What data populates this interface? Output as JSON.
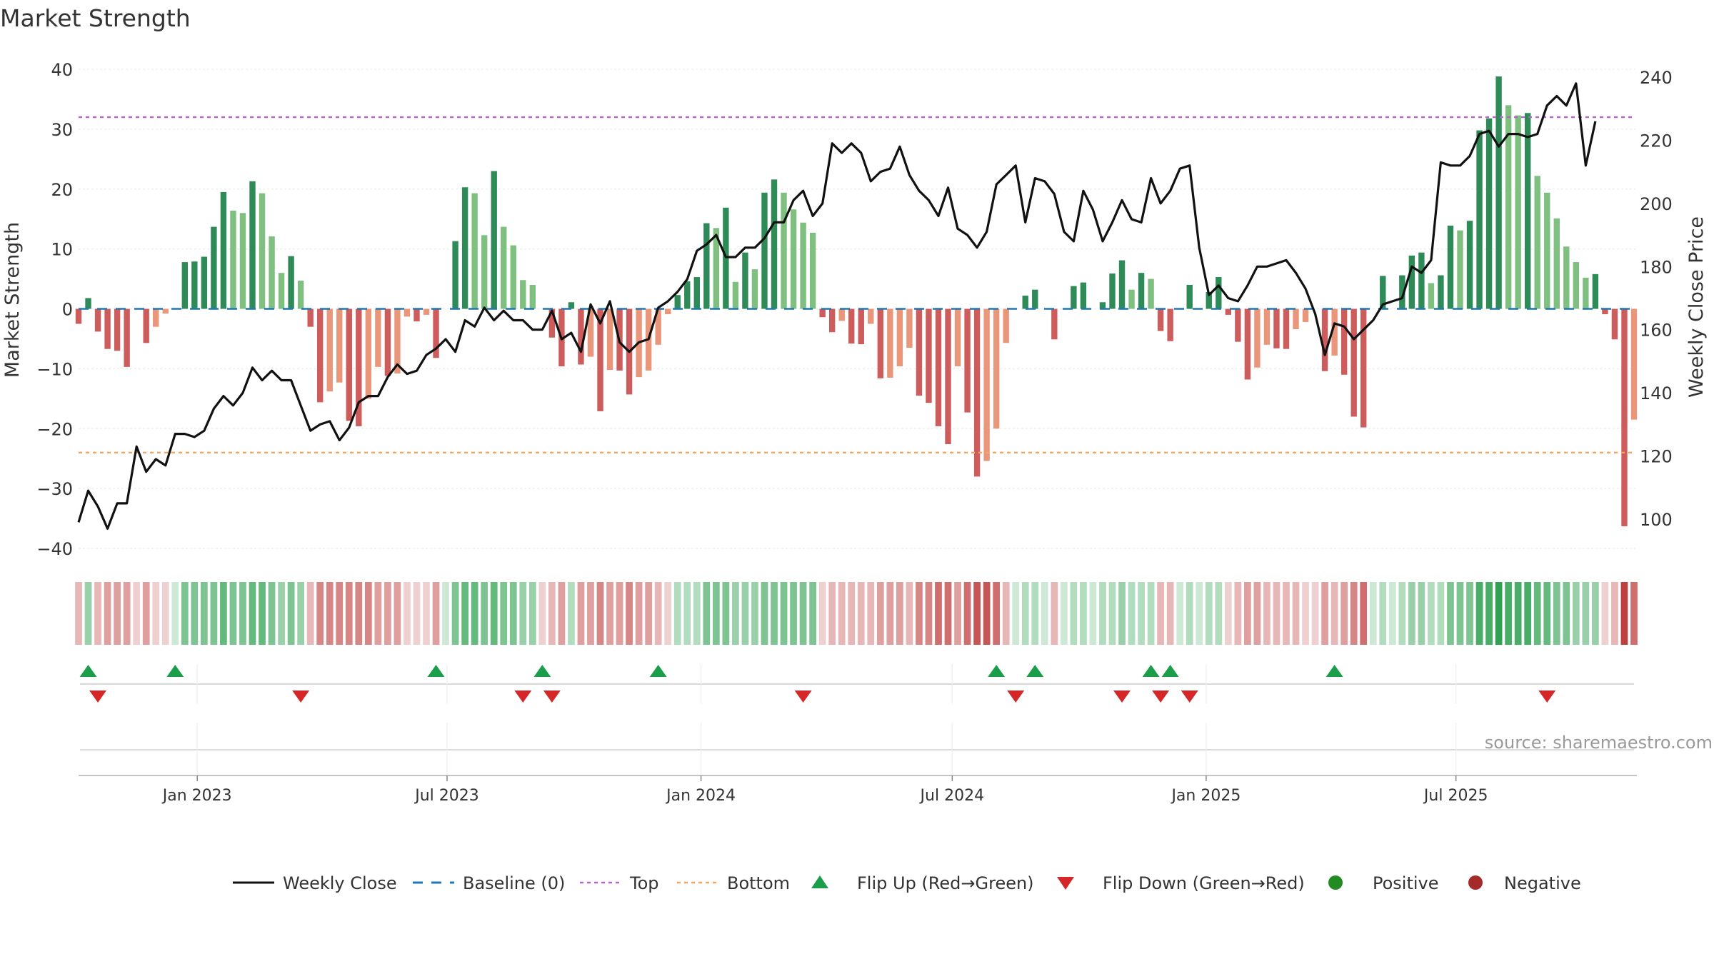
{
  "title": "Market Strength",
  "source": "source: sharemaestro.com",
  "colors": {
    "top_line": "#b565c9",
    "bottom_line": "#f0a860",
    "baseline": "#1f77b4",
    "price": "#111111",
    "strong_pos": "#2e8b57",
    "weak_pos": "#7fbf7f",
    "strong_neg": "#cd5c5c",
    "weak_neg": "#e9967a",
    "flip_up": "#1a9e4a",
    "flip_down": "#d62728",
    "positive_dot": "#228b22",
    "negative_dot": "#a52a2a"
  },
  "chart_data": {
    "type": "bar",
    "title": "Market Strength",
    "ylabel": "Market Strength",
    "y2label": "Weekly Close Price",
    "ylim": [
      -40,
      40
    ],
    "y2lim": [
      92,
      242
    ],
    "yticks": [
      "40",
      "30",
      "20",
      "10",
      "0",
      "−10",
      "−20",
      "−30",
      "−40"
    ],
    "y2ticks": [
      "240",
      "220",
      "200",
      "180",
      "160",
      "140",
      "120",
      "100"
    ],
    "x_start": "2022-10-07",
    "x_step_days": 7,
    "xticks": [
      {
        "date": "2023-01-01",
        "label": "Jan 2023"
      },
      {
        "date": "2023-07-01",
        "label": "Jul 2023"
      },
      {
        "date": "2024-01-01",
        "label": "Jan 2024"
      },
      {
        "date": "2024-07-01",
        "label": "Jul 2024"
      },
      {
        "date": "2025-01-01",
        "label": "Jan 2025"
      },
      {
        "date": "2025-07-01",
        "label": "Jul 2025"
      }
    ],
    "top_level": 32,
    "bottom_level": -24,
    "strength": [
      -2.5,
      1.8,
      -3.8,
      -6.7,
      -7,
      -9.7,
      0,
      -5.7,
      -3,
      -0.8,
      0,
      7.8,
      7.9,
      8.7,
      13.7,
      19.5,
      16.4,
      16,
      21.3,
      19.3,
      12.1,
      6,
      8.8,
      4.7,
      -3,
      -15.6,
      -13.8,
      -12.3,
      -18.7,
      -19.6,
      -15,
      -9.7,
      -11.2,
      -10.8,
      -1.3,
      -2.1,
      -1,
      -8.2,
      0,
      11.3,
      20.3,
      19.3,
      12.3,
      23,
      13.7,
      10.6,
      4.8,
      4,
      0,
      -4.8,
      -9.6,
      1.1,
      -9.3,
      -8,
      -17.1,
      -10.2,
      -10.3,
      -14.3,
      -11.4,
      -10.3,
      -6,
      -0.9,
      2.3,
      4.6,
      5.3,
      14.3,
      13.5,
      16.9,
      4.5,
      9.4,
      6.6,
      19.4,
      21.6,
      19.4,
      16.6,
      14.4,
      12.7,
      -1.4,
      -3.9,
      -2,
      -5.8,
      -5.9,
      -2.5,
      -11.6,
      -11.5,
      -9.6,
      -6.5,
      -14.5,
      -15.7,
      -19.6,
      -22.6,
      -9.6,
      -17.3,
      -28,
      -25.4,
      -20,
      -5.7,
      0,
      2.2,
      3.2,
      0,
      -5.1,
      0,
      3.8,
      4.4,
      0,
      1.1,
      5.9,
      8.1,
      3.2,
      6,
      5,
      -3.7,
      -5.4,
      0,
      4,
      0,
      2.8,
      5.3,
      -1,
      -5.5,
      -11.8,
      -9.8,
      -6,
      -6.6,
      -6.7,
      -3.4,
      -2.2,
      0,
      -10.4,
      -7.8,
      -11,
      -18,
      -19.8,
      0,
      5.5,
      0,
      5.6,
      8.9,
      9.4,
      4.3,
      5.6,
      13.9,
      13.1,
      14.7,
      29.8,
      31.8,
      38.8,
      34,
      32.3,
      32.7,
      22.2,
      19.4,
      15.1,
      10.4,
      7.8,
      5.2,
      5.8,
      -0.9,
      -5.1,
      -36.3,
      -18.5
    ],
    "weekly_close": [
      99,
      109,
      104,
      97,
      105,
      105,
      123,
      115,
      119,
      117,
      127,
      127,
      126,
      128,
      135,
      139,
      136,
      140,
      148,
      144,
      147,
      144,
      144,
      136,
      128,
      130,
      131,
      125,
      129,
      137,
      139,
      139,
      145,
      149,
      146,
      147,
      152,
      154,
      157,
      153,
      163,
      161,
      167,
      163,
      166,
      163,
      163,
      160,
      160,
      166,
      157,
      159,
      153,
      168,
      162,
      169,
      156,
      153,
      156,
      157,
      167,
      169,
      172,
      176,
      185,
      187,
      190,
      183,
      183,
      186,
      186,
      189,
      194,
      194,
      201,
      204,
      196,
      200,
      219,
      216,
      219,
      216,
      207,
      210,
      211,
      218,
      209,
      204,
      201,
      196,
      205,
      192,
      190,
      186,
      191,
      206,
      209,
      212,
      194,
      208,
      207,
      203,
      191,
      188,
      204,
      198,
      188,
      194,
      201,
      195,
      194,
      208,
      200,
      204,
      211,
      212,
      186,
      171,
      174,
      170,
      169,
      174,
      180,
      180,
      181,
      182,
      178,
      173,
      165,
      152,
      162,
      161,
      157,
      160,
      163,
      168,
      169,
      170,
      180,
      178,
      182,
      213,
      212,
      212,
      215,
      222,
      223,
      218,
      222,
      222,
      221,
      222,
      231,
      234,
      231,
      238,
      212,
      226
    ],
    "heat_strip": [
      -2,
      3,
      -2,
      -3,
      -3,
      -3,
      -1,
      -3,
      -1,
      -1,
      1,
      4,
      4,
      4,
      4,
      5,
      4,
      4,
      5,
      5,
      4,
      3,
      4,
      3,
      -2,
      -4,
      -4,
      -4,
      -4,
      -4,
      -4,
      -3,
      -3,
      -3,
      -1,
      -1,
      -1,
      -3,
      1,
      4,
      5,
      5,
      4,
      5,
      4,
      4,
      3,
      3,
      -1,
      -2,
      -3,
      2,
      -3,
      -3,
      -4,
      -3,
      -3,
      -4,
      -3,
      -3,
      -2,
      -1,
      2,
      2,
      2,
      4,
      4,
      4,
      3,
      3,
      3,
      4,
      4,
      4,
      4,
      4,
      4,
      -1,
      -2,
      -2,
      -2,
      -2,
      -2,
      -3,
      -3,
      -3,
      -2,
      -4,
      -4,
      -5,
      -5,
      -3,
      -5,
      -6,
      -6,
      -5,
      -2,
      1,
      2,
      2,
      1,
      -2,
      1,
      2,
      2,
      1,
      2,
      2,
      3,
      2,
      2,
      2,
      -2,
      -2,
      1,
      2,
      1,
      2,
      2,
      -1,
      -2,
      -3,
      -3,
      -2,
      -2,
      -2,
      -2,
      -1,
      -1,
      -3,
      -2,
      -3,
      -4,
      -5,
      1,
      2,
      1,
      2,
      3,
      3,
      2,
      2,
      4,
      4,
      4,
      6,
      6,
      7,
      6,
      6,
      6,
      5,
      5,
      4,
      4,
      3,
      3,
      3,
      -1,
      -2,
      -7,
      -5
    ],
    "flip_up_weeks": [
      1,
      10,
      37,
      48,
      60,
      95,
      99,
      111,
      113,
      130
    ],
    "flip_down_weeks": [
      2,
      23,
      46,
      49,
      75,
      97,
      108,
      112,
      115,
      152
    ]
  },
  "legend": [
    {
      "label": "Weekly Close",
      "kind": "line"
    },
    {
      "label": "Baseline (0)",
      "kind": "dash"
    },
    {
      "label": "Top",
      "kind": "dot-top"
    },
    {
      "label": "Bottom",
      "kind": "dot-bottom"
    },
    {
      "label": "Flip Up (Red→Green)",
      "kind": "tri-up"
    },
    {
      "label": "Flip Down (Green→Red)",
      "kind": "tri-down"
    },
    {
      "label": "Positive",
      "kind": "circle-pos"
    },
    {
      "label": "Negative",
      "kind": "circle-neg"
    }
  ]
}
